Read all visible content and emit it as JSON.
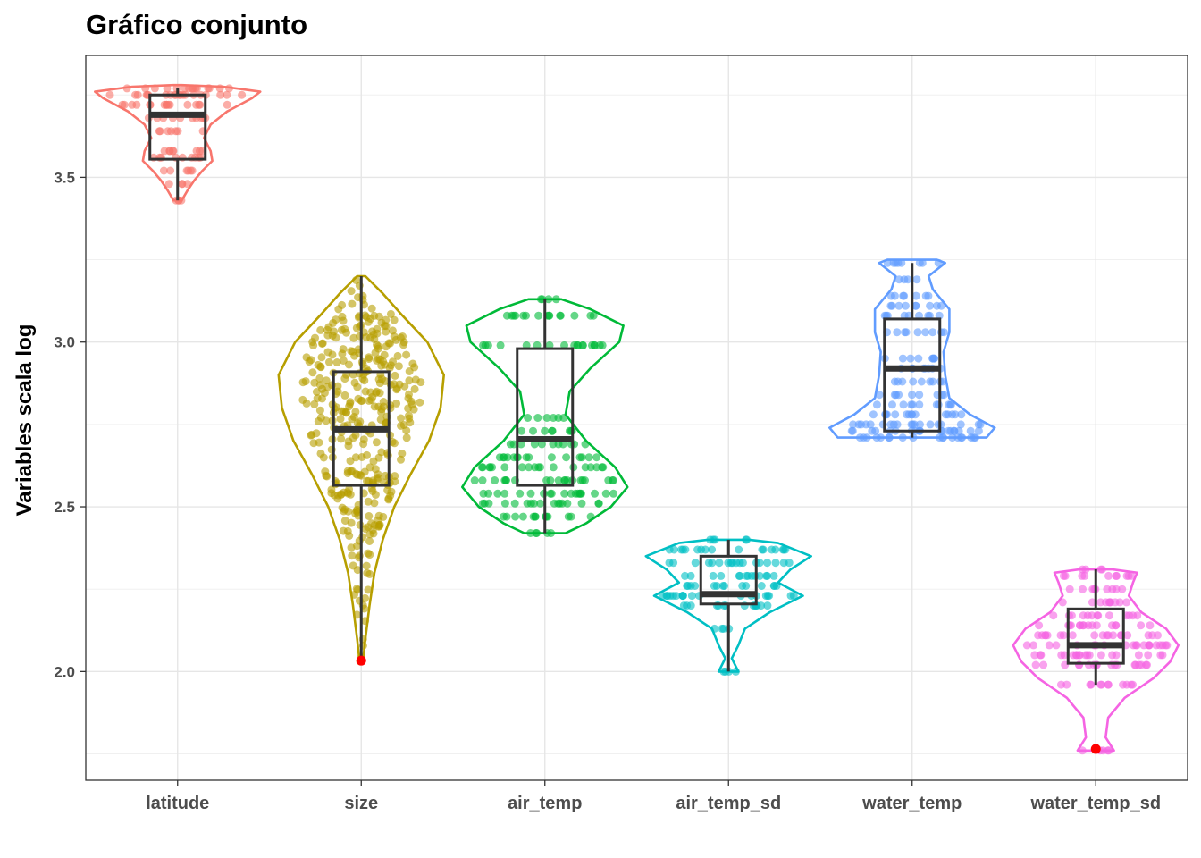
{
  "chart_data": {
    "type": "violin",
    "title": "Gráfico conjunto",
    "xlabel": "",
    "ylabel": "Variables scala log",
    "ylim": [
      1.67,
      3.87
    ],
    "yticks": [
      2.0,
      2.5,
      3.0,
      3.5
    ],
    "ytick_labels": [
      "2.0",
      "2.5",
      "3.0",
      "3.5"
    ],
    "grid": true,
    "legend": "none",
    "categories": [
      "latitude",
      "size",
      "air_temp",
      "air_temp_sd",
      "water_temp",
      "water_temp_sd"
    ],
    "series": [
      {
        "category": "latitude",
        "color": "#F8766D",
        "box": {
          "min": 3.43,
          "q1": 3.555,
          "median": 3.69,
          "q3": 3.75,
          "max": 3.77
        },
        "violin": [
          [
            3.43,
            0.05
          ],
          [
            3.46,
            0.12
          ],
          [
            3.49,
            0.2
          ],
          [
            3.52,
            0.3
          ],
          [
            3.55,
            0.42
          ],
          [
            3.58,
            0.4
          ],
          [
            3.62,
            0.32
          ],
          [
            3.66,
            0.4
          ],
          [
            3.7,
            0.6
          ],
          [
            3.74,
            0.9
          ],
          [
            3.76,
            1.0
          ],
          [
            3.775,
            0.55
          ],
          [
            3.78,
            0.05
          ]
        ],
        "dot_levels": [
          3.43,
          3.48,
          3.52,
          3.56,
          3.58,
          3.64,
          3.68,
          3.72,
          3.75,
          3.77
        ],
        "outliers": []
      },
      {
        "category": "size",
        "color": "#B79F00",
        "box": {
          "min": 2.03,
          "q1": 2.565,
          "median": 2.735,
          "q3": 2.91,
          "max": 3.2
        },
        "violin": [
          [
            2.03,
            0.02
          ],
          [
            2.1,
            0.05
          ],
          [
            2.2,
            0.1
          ],
          [
            2.3,
            0.16
          ],
          [
            2.4,
            0.26
          ],
          [
            2.5,
            0.4
          ],
          [
            2.6,
            0.6
          ],
          [
            2.7,
            0.82
          ],
          [
            2.8,
            0.96
          ],
          [
            2.9,
            1.0
          ],
          [
            3.0,
            0.8
          ],
          [
            3.08,
            0.5
          ],
          [
            3.15,
            0.25
          ],
          [
            3.2,
            0.05
          ]
        ],
        "dot_levels": [],
        "outliers": [
          2.033
        ]
      },
      {
        "category": "air_temp",
        "color": "#00BA38",
        "box": {
          "min": 2.42,
          "q1": 2.565,
          "median": 2.705,
          "q3": 2.98,
          "max": 3.13
        },
        "violin": [
          [
            2.42,
            0.25
          ],
          [
            2.45,
            0.5
          ],
          [
            2.5,
            0.8
          ],
          [
            2.56,
            1.0
          ],
          [
            2.62,
            0.85
          ],
          [
            2.7,
            0.5
          ],
          [
            2.78,
            0.25
          ],
          [
            2.85,
            0.3
          ],
          [
            2.92,
            0.55
          ],
          [
            3.0,
            0.9
          ],
          [
            3.05,
            0.95
          ],
          [
            3.1,
            0.55
          ],
          [
            3.13,
            0.2
          ]
        ],
        "dot_levels": [
          2.42,
          2.47,
          2.51,
          2.54,
          2.58,
          2.62,
          2.65,
          2.69,
          2.73,
          2.77,
          2.99,
          3.08,
          3.13
        ],
        "outliers": []
      },
      {
        "category": "air_temp_sd",
        "color": "#00BFC4",
        "box": {
          "min": 2.0,
          "q1": 2.205,
          "median": 2.235,
          "q3": 2.35,
          "max": 2.4
        },
        "violin": [
          [
            2.0,
            0.12
          ],
          [
            2.04,
            0.04
          ],
          [
            2.08,
            0.12
          ],
          [
            2.13,
            0.2
          ],
          [
            2.18,
            0.5
          ],
          [
            2.23,
            0.9
          ],
          [
            2.27,
            0.6
          ],
          [
            2.31,
            0.75
          ],
          [
            2.35,
            1.0
          ],
          [
            2.39,
            0.6
          ],
          [
            2.4,
            0.25
          ]
        ],
        "dot_levels": [
          2.0,
          2.13,
          2.2,
          2.23,
          2.26,
          2.29,
          2.33,
          2.37,
          2.4
        ],
        "outliers": []
      },
      {
        "category": "water_temp",
        "color": "#619CFF",
        "box": {
          "min": 2.71,
          "q1": 2.73,
          "median": 2.92,
          "q3": 3.07,
          "max": 3.24
        },
        "violin": [
          [
            2.71,
            0.9
          ],
          [
            2.74,
            1.0
          ],
          [
            2.78,
            0.7
          ],
          [
            2.83,
            0.45
          ],
          [
            2.9,
            0.4
          ],
          [
            2.97,
            0.38
          ],
          [
            3.03,
            0.45
          ],
          [
            3.1,
            0.45
          ],
          [
            3.16,
            0.25
          ],
          [
            3.2,
            0.2
          ],
          [
            3.24,
            0.4
          ],
          [
            3.25,
            0.3
          ]
        ],
        "dot_levels": [
          2.71,
          2.73,
          2.75,
          2.78,
          2.81,
          2.84,
          2.88,
          2.92,
          2.95,
          3.03,
          3.08,
          3.11,
          3.14,
          3.19,
          3.24
        ],
        "outliers": []
      },
      {
        "category": "water_temp_sd",
        "color": "#F564E3",
        "box": {
          "min": 1.96,
          "q1": 2.025,
          "median": 2.08,
          "q3": 2.19,
          "max": 2.31
        },
        "violin": [
          [
            1.76,
            0.22
          ],
          [
            1.8,
            0.12
          ],
          [
            1.86,
            0.15
          ],
          [
            1.92,
            0.35
          ],
          [
            1.98,
            0.7
          ],
          [
            2.03,
            0.9
          ],
          [
            2.08,
            1.0
          ],
          [
            2.13,
            0.85
          ],
          [
            2.18,
            0.55
          ],
          [
            2.23,
            0.4
          ],
          [
            2.27,
            0.45
          ],
          [
            2.3,
            0.5
          ],
          [
            2.31,
            0.2
          ]
        ],
        "dot_levels": [
          1.76,
          1.96,
          2.02,
          2.05,
          2.08,
          2.11,
          2.14,
          2.17,
          2.21,
          2.25,
          2.29,
          2.31
        ],
        "outliers": [
          1.765
        ]
      }
    ]
  }
}
